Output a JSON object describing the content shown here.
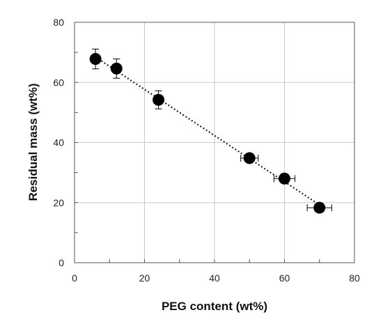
{
  "chart_data": {
    "type": "scatter",
    "xlabel": "PEG content (wt%)",
    "ylabel": "Residual mass (wt%)",
    "xlim": [
      0,
      80
    ],
    "ylim": [
      0,
      80
    ],
    "xticks": [
      "0",
      "20",
      "40",
      "60",
      "80"
    ],
    "yticks": [
      "0",
      "20",
      "40",
      "60",
      "80"
    ],
    "grid": true,
    "trendline": "linear-dotted",
    "colors": {
      "marker": "#000000",
      "grid": "#c8c8c8",
      "axis": "#555555"
    },
    "series": [
      {
        "x": [
          6,
          12,
          24,
          50,
          60,
          70
        ],
        "y": [
          67.8,
          64.6,
          54.2,
          34.8,
          28.0,
          18.3
        ],
        "x_err": [
          0,
          0,
          0,
          2.5,
          3.0,
          3.5
        ],
        "y_err": [
          3.3,
          3.2,
          3.0,
          1.3,
          1.2,
          1.5
        ]
      }
    ]
  }
}
